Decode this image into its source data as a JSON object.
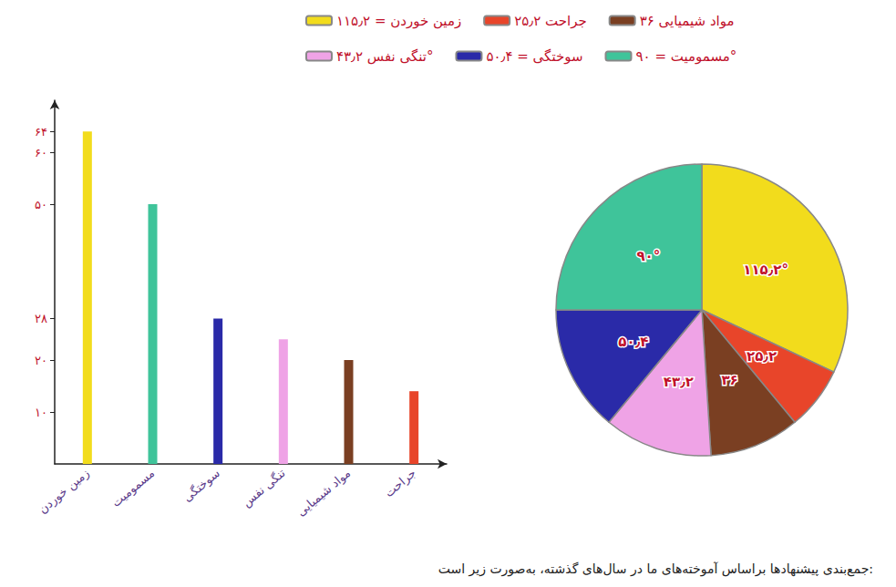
{
  "chart_data": [
    {
      "type": "bar",
      "categories": [
        "زمین خوردن",
        "مسمومیت",
        "سوختگی",
        "تنگی نفس",
        "مواد شیمیایی",
        "جراحت"
      ],
      "values": [
        64,
        50,
        28,
        24,
        20,
        14
      ],
      "colors": [
        "#f2dc1c",
        "#3fc49a",
        "#2a2aa8",
        "#efa3e6",
        "#7a3f22",
        "#e8452a"
      ],
      "ylim": [
        0,
        70
      ],
      "yticks": [
        {
          "value": 10,
          "label": "۱۰"
        },
        {
          "value": 20,
          "label": "۲۰"
        },
        {
          "value": 28,
          "label": "۲۸"
        },
        {
          "value": 50,
          "label": "۵۰"
        },
        {
          "value": 60,
          "label": "۶۰"
        },
        {
          "value": 64,
          "label": "۶۴"
        }
      ],
      "grid": false
    },
    {
      "type": "pie",
      "categories": [
        "زمین خوردن",
        "جراحت",
        "مواد شیمیایی",
        "تنگی نفس",
        "سوختگی",
        "مسمومیت"
      ],
      "values": [
        115.2,
        25.2,
        36,
        43.2,
        50.4,
        90
      ],
      "value_labels": [
        "۱۱۵٫۲°",
        "۲۵٫۲",
        "۳۶",
        "۴۳٫۲",
        "۵۰٫۴",
        "۹۰°"
      ],
      "colors": [
        "#f2dc1c",
        "#e8452a",
        "#7a3f22",
        "#efa3e6",
        "#2a2aa8",
        "#3fc49a"
      ],
      "legend_labels": [
        "زمین خوردن = ۱۱۵٫۲",
        "جراحت ۲۵٫۲",
        "مواد شیمیایی ۳۶",
        "تنگی نفس ۴۳٫۲°",
        "سوختگی = ۵۰٫۴",
        "مسمومیت = ۹۰°"
      ],
      "legend": "top",
      "data_labels": true
    }
  ],
  "caption": "جمع‌بندی پیشنهادها براساس آموخته‌های ما در سال‌های گذشته، به‌صورت زیر است:"
}
